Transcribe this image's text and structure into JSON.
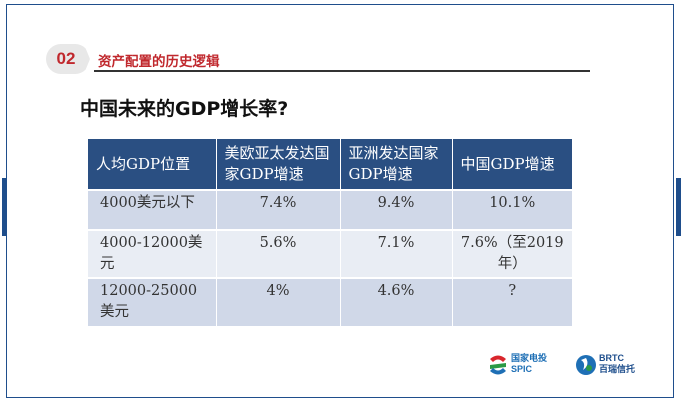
{
  "section": {
    "number": "02",
    "title": "资产配置的历史逻辑"
  },
  "question": "中国未来的GDP增长率?",
  "table": {
    "headers": [
      "人均GDP位置",
      "美欧亚太发达国家GDP增速",
      "亚洲发达国家GDP增速",
      "中国GDP增速"
    ],
    "rows": [
      [
        "4000美元以下",
        "7.4%",
        "9.4%",
        "10.1%"
      ],
      [
        "4000-12000美元",
        "5.6%",
        "7.1%",
        "7.6%（至2019年）"
      ],
      [
        "12000-25000美元",
        "4%",
        "4.6%",
        "?"
      ]
    ]
  },
  "logos": {
    "spic_cn": "国家电投",
    "spic_en": "SPIC",
    "brtc_en": "BRTC",
    "brtc_cn": "百瑞信托"
  },
  "colors": {
    "accent_red": "#c0282d",
    "header_blue": "#2a4f82",
    "row_dark": "#d0d8e8",
    "row_light": "#e9edf4"
  }
}
